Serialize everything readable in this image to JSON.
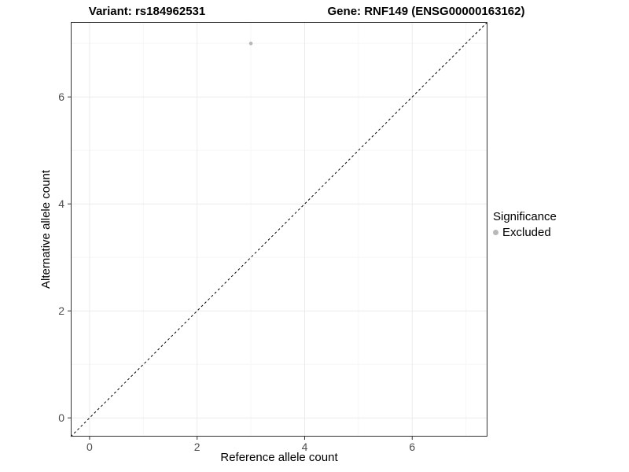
{
  "header": {
    "variant_title": "Variant: rs184962531",
    "gene_title": "Gene: RNF149 (ENSG00000163162)"
  },
  "chart_data": {
    "type": "scatter",
    "title": "Variant: rs184962531 / Gene: RNF149 (ENSG00000163162)",
    "xlabel": "Reference allele count",
    "ylabel": "Alternative allele count",
    "xlim": [
      -0.35,
      7.4
    ],
    "ylim": [
      -0.35,
      7.4
    ],
    "xticks": [
      0,
      2,
      4,
      6
    ],
    "yticks": [
      0,
      2,
      4,
      6
    ],
    "minor_xticks": [
      1,
      3,
      5,
      7
    ],
    "minor_yticks": [
      1,
      3,
      5,
      7
    ],
    "grid": true,
    "panel_border": true,
    "reference_line": {
      "kind": "identity y=x",
      "style": "dashed",
      "color": "#000000"
    },
    "series": [
      {
        "name": "Excluded",
        "color": "#b8b8b8",
        "point_radius": 2.3,
        "points": [
          [
            3,
            7
          ]
        ]
      }
    ],
    "legend": {
      "title": "Significance",
      "position": "right",
      "items": [
        {
          "label": "Excluded",
          "color": "#b8b8b8"
        }
      ]
    },
    "colors": {
      "grid_major": "#ebebeb",
      "grid_minor": "#f6f6f6",
      "panel_border": "#333333",
      "tick_mark": "#333333",
      "tick_label": "#4d4d4d"
    }
  }
}
